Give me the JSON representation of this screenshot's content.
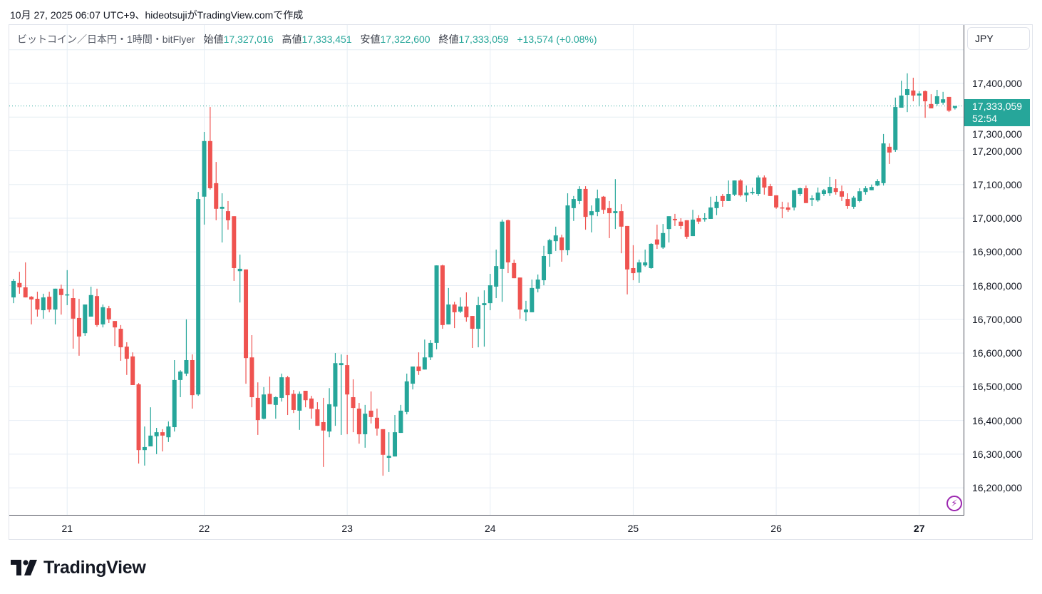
{
  "caption": "10月 27, 2025 06:07 UTC+9、hideotsujiがTradingView.comで作成",
  "legend": {
    "symbol": "ビットコイン／日本円・1時間・bitFlyer",
    "open_label": "始値",
    "open": "17,327,016",
    "high_label": "高値",
    "high": "17,333,451",
    "low_label": "安値",
    "low": "17,322,600",
    "close_label": "終値",
    "close": "17,333,059",
    "change": "+13,574 (+0.08%)"
  },
  "currency_button": "JPY",
  "price_tag": {
    "price": "17,333,059",
    "countdown": "52:54"
  },
  "brand": "TradingView",
  "icons": {
    "alert": "lightning-icon",
    "logo": "tradingview-logo-icon"
  },
  "colors": {
    "up": "#26a69a",
    "down": "#ef5350",
    "grid": "#e6edf4",
    "alert": "#9c27b0"
  },
  "chart_data": {
    "type": "candlestick",
    "title": "ビットコイン／日本円・1時間・bitFlyer",
    "interval": "1h",
    "price_unit": "thousand JPY",
    "ylim": [
      16120,
      17560
    ],
    "y_ticks": [
      16200,
      16300,
      16400,
      16500,
      16600,
      16700,
      16800,
      16900,
      17000,
      17100,
      17200,
      17300,
      17400
    ],
    "y_tick_labels": [
      "16,200,000",
      "16,300,000",
      "16,400,000",
      "16,500,000",
      "16,600,000",
      "16,700,000",
      "16,800,000",
      "16,900,000",
      "17,000,000",
      "17,100,000",
      "17,200,000",
      "17,300,000",
      "17,400,000"
    ],
    "x_ticks": [
      {
        "index": 9,
        "label": "21",
        "bold": false
      },
      {
        "index": 32,
        "label": "22",
        "bold": false
      },
      {
        "index": 56,
        "label": "23",
        "bold": false
      },
      {
        "index": 80,
        "label": "24",
        "bold": false
      },
      {
        "index": 104,
        "label": "25",
        "bold": false
      },
      {
        "index": 128,
        "label": "26",
        "bold": false
      },
      {
        "index": 152,
        "label": "27",
        "bold": true
      }
    ],
    "last_price": 17333.059,
    "ohlc": [
      [
        16765,
        16820,
        16748,
        16814
      ],
      [
        16808,
        16841,
        16776,
        16795
      ],
      [
        16795,
        16869,
        16765,
        16765
      ],
      [
        16767,
        16769,
        16685,
        16759
      ],
      [
        16761,
        16782,
        16708,
        16729
      ],
      [
        16727,
        16776,
        16702,
        16765
      ],
      [
        16767,
        16782,
        16721,
        16729
      ],
      [
        16729,
        16791,
        16685,
        16791
      ],
      [
        16791,
        16803,
        16714,
        16772
      ],
      [
        16774,
        16846,
        16742,
        16774
      ],
      [
        16763,
        16791,
        16613,
        16702
      ],
      [
        16704,
        16761,
        16592,
        16649
      ],
      [
        16659,
        16744,
        16651,
        16744
      ],
      [
        16708,
        16797,
        16708,
        16772
      ],
      [
        16769,
        16791,
        16678,
        16683
      ],
      [
        16685,
        16744,
        16676,
        16736
      ],
      [
        16733,
        16740,
        16689,
        16700
      ],
      [
        16695,
        16695,
        16621,
        16676
      ],
      [
        16672,
        16683,
        16577,
        16617
      ],
      [
        16619,
        16632,
        16535,
        16583
      ],
      [
        16590,
        16602,
        16505,
        16505
      ],
      [
        16507,
        16511,
        16272,
        16312
      ],
      [
        16312,
        16382,
        16266,
        16321
      ],
      [
        16323,
        16439,
        16323,
        16355
      ],
      [
        16353,
        16378,
        16300,
        16365
      ],
      [
        16365,
        16374,
        16308,
        16355
      ],
      [
        16350,
        16397,
        16336,
        16382
      ],
      [
        16380,
        16579,
        16367,
        16520
      ],
      [
        16520,
        16549,
        16469,
        16545
      ],
      [
        16539,
        16700,
        16532,
        16579
      ],
      [
        16579,
        16596,
        16435,
        16475
      ],
      [
        16477,
        17078,
        16473,
        17057
      ],
      [
        17064,
        17256,
        16981,
        17229
      ],
      [
        17229,
        17330,
        17085,
        17089
      ],
      [
        17104,
        17167,
        16994,
        17028
      ],
      [
        17028,
        17074,
        16928,
        17034
      ],
      [
        17021,
        17051,
        16966,
        16994
      ],
      [
        17006,
        17006,
        16814,
        16852
      ],
      [
        16843,
        16892,
        16750,
        16850
      ],
      [
        16848,
        16848,
        16509,
        16585
      ],
      [
        16587,
        16653,
        16439,
        16469
      ],
      [
        16467,
        16513,
        16357,
        16401
      ],
      [
        16405,
        16499,
        16403,
        16477
      ],
      [
        16479,
        16530,
        16448,
        16448
      ],
      [
        16446,
        16471,
        16405,
        16469
      ],
      [
        16467,
        16539,
        16456,
        16528
      ],
      [
        16528,
        16532,
        16416,
        16475
      ],
      [
        16479,
        16490,
        16422,
        16431
      ],
      [
        16429,
        16486,
        16372,
        16479
      ],
      [
        16488,
        16488,
        16439,
        16460
      ],
      [
        16465,
        16473,
        16405,
        16435
      ],
      [
        16433,
        16454,
        16384,
        16384
      ],
      [
        16395,
        16467,
        16262,
        16370
      ],
      [
        16367,
        16496,
        16350,
        16448
      ],
      [
        16441,
        16600,
        16384,
        16570
      ],
      [
        16564,
        16596,
        16357,
        16570
      ],
      [
        16564,
        16594,
        16359,
        16477
      ],
      [
        16469,
        16522,
        16365,
        16437
      ],
      [
        16435,
        16452,
        16331,
        16359
      ],
      [
        16359,
        16446,
        16319,
        16420
      ],
      [
        16429,
        16486,
        16391,
        16410
      ],
      [
        16408,
        16435,
        16355,
        16376
      ],
      [
        16374,
        16374,
        16236,
        16298
      ],
      [
        16289,
        16365,
        16247,
        16295
      ],
      [
        16293,
        16416,
        16293,
        16365
      ],
      [
        16363,
        16446,
        16363,
        16429
      ],
      [
        16425,
        16539,
        16418,
        16516
      ],
      [
        16509,
        16560,
        16492,
        16560
      ],
      [
        16560,
        16602,
        16535,
        16547
      ],
      [
        16551,
        16640,
        16551,
        16587
      ],
      [
        16587,
        16638,
        16579,
        16630
      ],
      [
        16630,
        16860,
        16611,
        16860
      ],
      [
        16860,
        16862,
        16672,
        16683
      ],
      [
        16685,
        16793,
        16685,
        16744
      ],
      [
        16744,
        16752,
        16674,
        16721
      ],
      [
        16723,
        16765,
        16719,
        16738
      ],
      [
        16738,
        16780,
        16693,
        16706
      ],
      [
        16710,
        16710,
        16615,
        16672
      ],
      [
        16672,
        16767,
        16617,
        16742
      ],
      [
        16742,
        16786,
        16619,
        16748
      ],
      [
        16748,
        16835,
        16727,
        16801
      ],
      [
        16797,
        16907,
        16763,
        16858
      ],
      [
        16850,
        16996,
        16752,
        16990
      ],
      [
        16994,
        16996,
        16837,
        16869
      ],
      [
        16867,
        16877,
        16822,
        16822
      ],
      [
        16824,
        16824,
        16702,
        16729
      ],
      [
        16721,
        16755,
        16695,
        16729
      ],
      [
        16721,
        16818,
        16721,
        16793
      ],
      [
        16791,
        16833,
        16780,
        16818
      ],
      [
        16816,
        16918,
        16801,
        16888
      ],
      [
        16894,
        16939,
        16856,
        16935
      ],
      [
        16932,
        16975,
        16903,
        16949
      ],
      [
        16943,
        16951,
        16871,
        16905
      ],
      [
        16905,
        17074,
        16890,
        17038
      ],
      [
        17030,
        17066,
        16992,
        17057
      ],
      [
        17051,
        17095,
        17042,
        17087
      ],
      [
        17087,
        17095,
        16966,
        17004
      ],
      [
        17009,
        17038,
        16958,
        17021
      ],
      [
        17019,
        17085,
        17006,
        17059
      ],
      [
        17064,
        17066,
        17013,
        17025
      ],
      [
        17030,
        17051,
        16941,
        17015
      ],
      [
        17015,
        17116,
        16968,
        17021
      ],
      [
        17021,
        17042,
        16896,
        16975
      ],
      [
        16977,
        16977,
        16774,
        16848
      ],
      [
        16852,
        16920,
        16816,
        16837
      ],
      [
        16839,
        16877,
        16808,
        16869
      ],
      [
        16860,
        16907,
        16856,
        16869
      ],
      [
        16852,
        16926,
        16850,
        16924
      ],
      [
        16937,
        16981,
        16909,
        16922
      ],
      [
        16913,
        16983,
        16909,
        16956
      ],
      [
        16968,
        17006,
        16928,
        17006
      ],
      [
        16998,
        17013,
        16977,
        16994
      ],
      [
        16990,
        17000,
        16968,
        16977
      ],
      [
        16994,
        16994,
        16939,
        16945
      ],
      [
        16947,
        17025,
        16947,
        16996
      ],
      [
        17000,
        17009,
        16983,
        16990
      ],
      [
        16998,
        17015,
        16990,
        17000
      ],
      [
        16998,
        17064,
        16998,
        17032
      ],
      [
        17030,
        17066,
        17009,
        17049
      ],
      [
        17066,
        17072,
        17034,
        17051
      ],
      [
        17051,
        17112,
        17051,
        17072
      ],
      [
        17070,
        17112,
        17066,
        17112
      ],
      [
        17112,
        17116,
        17064,
        17068
      ],
      [
        17068,
        17097,
        17049,
        17076
      ],
      [
        17074,
        17091,
        17070,
        17078
      ],
      [
        17072,
        17127,
        17066,
        17121
      ],
      [
        17121,
        17127,
        17070,
        17091
      ],
      [
        17095,
        17102,
        17066,
        17066
      ],
      [
        17068,
        17068,
        17028,
        17032
      ],
      [
        17032,
        17049,
        17000,
        17030
      ],
      [
        17032,
        17047,
        17019,
        17025
      ],
      [
        17032,
        17083,
        17023,
        17083
      ],
      [
        17072,
        17091,
        17066,
        17089
      ],
      [
        17089,
        17097,
        17045,
        17045
      ],
      [
        17055,
        17068,
        17036,
        17059
      ],
      [
        17053,
        17091,
        17049,
        17076
      ],
      [
        17072,
        17087,
        17066,
        17083
      ],
      [
        17074,
        17123,
        17066,
        17093
      ],
      [
        17089,
        17116,
        17070,
        17078
      ],
      [
        17080,
        17097,
        17051,
        17064
      ],
      [
        17057,
        17074,
        17028,
        17036
      ],
      [
        17034,
        17066,
        17028,
        17061
      ],
      [
        17051,
        17089,
        17047,
        17080
      ],
      [
        17078,
        17095,
        17070,
        17089
      ],
      [
        17083,
        17100,
        17083,
        17093
      ],
      [
        17097,
        17116,
        17095,
        17110
      ],
      [
        17104,
        17250,
        17097,
        17222
      ],
      [
        17212,
        17222,
        17161,
        17195
      ],
      [
        17203,
        17358,
        17197,
        17330
      ],
      [
        17328,
        17408,
        17328,
        17364
      ],
      [
        17366,
        17430,
        17315,
        17383
      ],
      [
        17379,
        17417,
        17347,
        17364
      ],
      [
        17364,
        17377,
        17332,
        17370
      ],
      [
        17377,
        17379,
        17298,
        17347
      ],
      [
        17339,
        17368,
        17326,
        17326
      ],
      [
        17339,
        17381,
        17334,
        17362
      ],
      [
        17343,
        17375,
        17337,
        17353
      ],
      [
        17360,
        17360,
        17315,
        17319
      ],
      [
        17327.016,
        17333.451,
        17322.6,
        17333.059
      ]
    ]
  }
}
